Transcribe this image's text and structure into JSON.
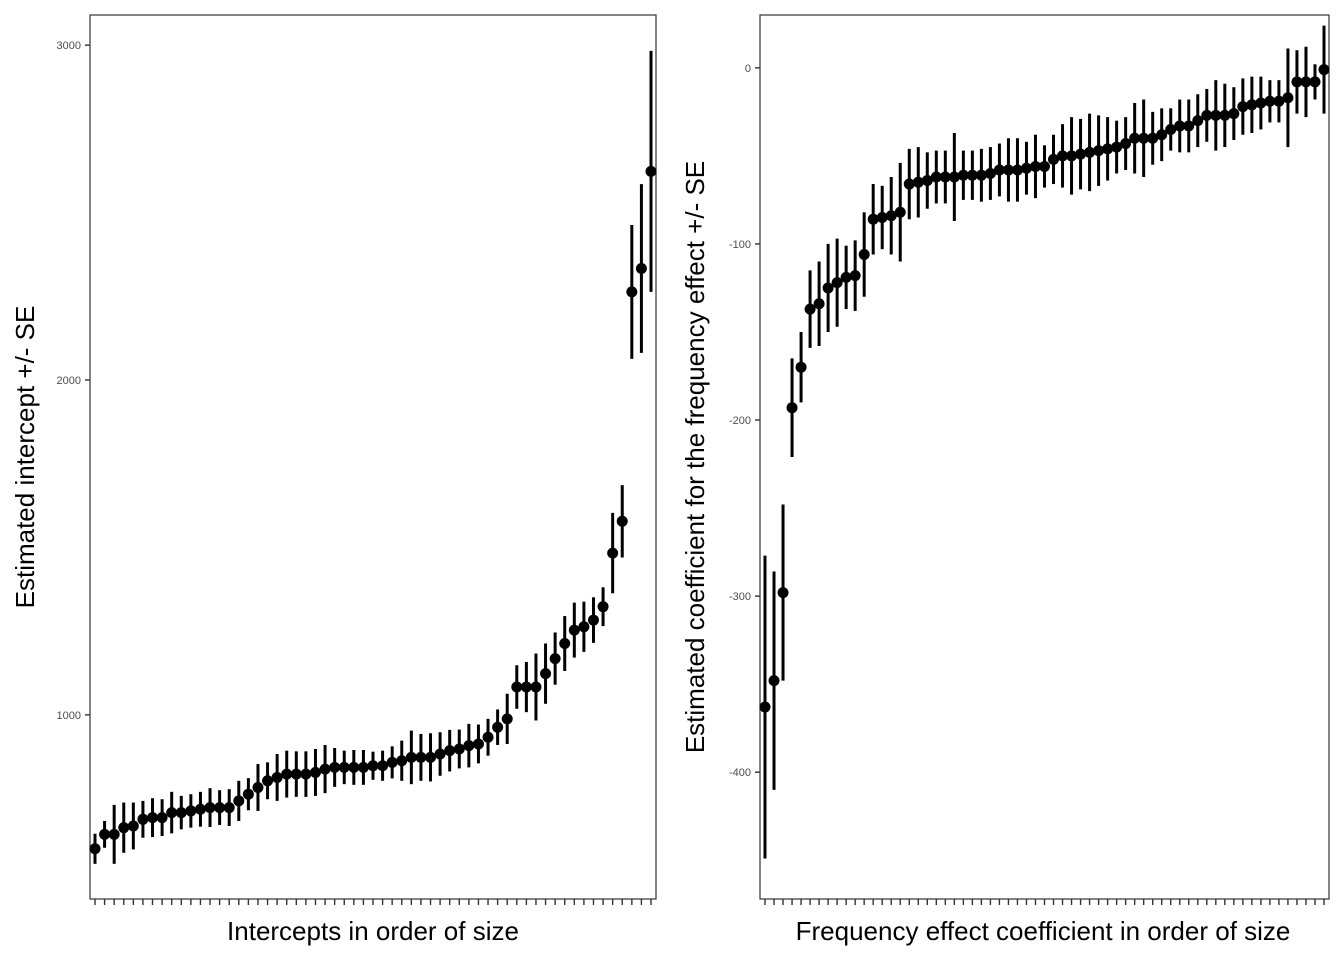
{
  "chart_data": [
    {
      "type": "scatter",
      "subtype": "pointrange",
      "title": "",
      "xlabel": "Intercepts in order of size",
      "ylabel": "Estimated intercept +/- SE",
      "ylim": [
        450,
        3090
      ],
      "yticks": [
        1000,
        2000,
        3000
      ],
      "x_tick_labels_shown": false,
      "grid": false,
      "point_color": "#000000",
      "series": [
        {
          "estimate": [
            600,
            643,
            643,
            663,
            668,
            688,
            693,
            693,
            708,
            708,
            713,
            718,
            723,
            723,
            723,
            743,
            763,
            783,
            803,
            813,
            823,
            823,
            823,
            828,
            838,
            843,
            843,
            843,
            843,
            848,
            848,
            858,
            863,
            873,
            873,
            873,
            883,
            893,
            898,
            908,
            913,
            933,
            963,
            988,
            1083,
            1083,
            1083,
            1123,
            1168,
            1213,
            1253,
            1263,
            1283,
            1323,
            1483,
            1578,
            2263,
            2333,
            2623
          ],
          "se": [
            45,
            40,
            88,
            75,
            70,
            55,
            58,
            55,
            62,
            50,
            50,
            52,
            58,
            52,
            55,
            60,
            48,
            70,
            55,
            70,
            70,
            68,
            68,
            70,
            72,
            58,
            50,
            52,
            52,
            42,
            45,
            48,
            60,
            80,
            70,
            72,
            65,
            62,
            58,
            65,
            58,
            55,
            53,
            75,
            65,
            75,
            100,
            90,
            78,
            82,
            82,
            75,
            68,
            58,
            120,
            108,
            200,
            252,
            360
          ]
        }
      ]
    },
    {
      "type": "scatter",
      "subtype": "pointrange",
      "title": "",
      "xlabel": "Frequency effect coefficient in order of size",
      "ylabel": "Estimated coefficient for the frequency effect +/- SE",
      "ylim": [
        -472,
        30
      ],
      "yticks": [
        -400,
        -300,
        -200,
        -100,
        0
      ],
      "x_tick_labels_shown": false,
      "grid": false,
      "point_color": "#000000",
      "series": [
        {
          "estimate": [
            -363,
            -348,
            -298,
            -193,
            -170,
            -137,
            -134,
            -125,
            -122,
            -119,
            -118,
            -106,
            -86,
            -85,
            -84,
            -82,
            -66,
            -65,
            -64,
            -62,
            -62,
            -62,
            -61,
            -61,
            -61,
            -60,
            -58,
            -58,
            -58,
            -57,
            -56,
            -56,
            -52,
            -50,
            -50,
            -49,
            -48,
            -47,
            -46,
            -45,
            -43,
            -40,
            -40,
            -40,
            -38,
            -35,
            -33,
            -33,
            -30,
            -27,
            -27,
            -27,
            -26,
            -22,
            -21,
            -20,
            -19,
            -19,
            -17,
            -8,
            -8,
            -8,
            -1
          ],
          "se": [
            86,
            62,
            50,
            28,
            20,
            22,
            24,
            25,
            25,
            18,
            20,
            24,
            20,
            18,
            22,
            28,
            20,
            20,
            16,
            15,
            15,
            25,
            14,
            14,
            15,
            15,
            15,
            18,
            18,
            15,
            18,
            12,
            14,
            18,
            22,
            20,
            22,
            20,
            18,
            15,
            15,
            20,
            22,
            15,
            15,
            12,
            15,
            15,
            15,
            15,
            20,
            18,
            15,
            16,
            16,
            15,
            12,
            12,
            28,
            18,
            20,
            10,
            25
          ]
        }
      ]
    }
  ]
}
